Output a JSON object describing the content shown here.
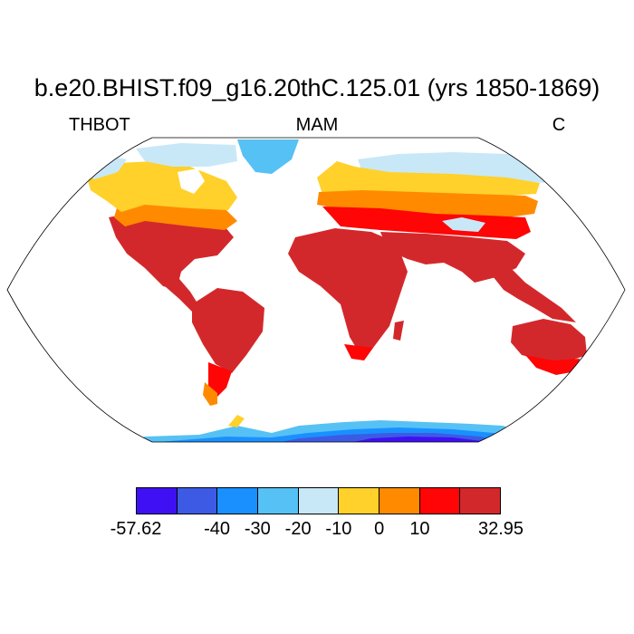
{
  "title": "b.e20.BHIST.f09_g16.20thC.125.01 (yrs 1850-1869)",
  "left_label": "THBOT",
  "center_label": "MAM",
  "right_label": "C",
  "map": {
    "projection": "robinson",
    "variable": "THBOT",
    "season": "MAM",
    "units": "C"
  },
  "colorbar": {
    "colors": [
      "#3f10f4",
      "#3d5ae4",
      "#1a90ff",
      "#56c1f5",
      "#c8e8f8",
      "#ffd12a",
      "#ff8a00",
      "#ff0505",
      "#d3282b"
    ],
    "labels": [
      {
        "text": "-57.62",
        "boundary": 0
      },
      {
        "text": "-40",
        "boundary": 2
      },
      {
        "text": "-30",
        "boundary": 3
      },
      {
        "text": "-20",
        "boundary": 4
      },
      {
        "text": "-10",
        "boundary": 5
      },
      {
        "text": "0",
        "boundary": 6
      },
      {
        "text": "10",
        "boundary": 7
      },
      {
        "text": "32.95",
        "boundary": 9
      }
    ]
  }
}
